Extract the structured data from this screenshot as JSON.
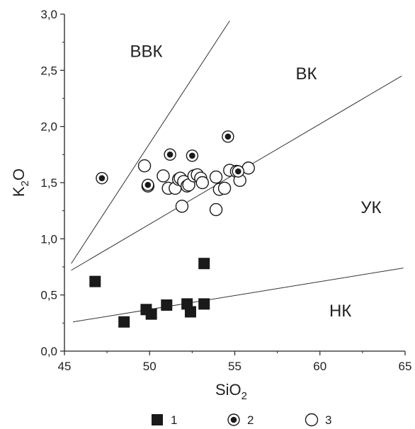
{
  "chart_data": {
    "type": "scatter",
    "title": "",
    "xlabel": {
      "main": "SiO",
      "sub": "2"
    },
    "ylabel": {
      "main": "K",
      "sub": "2",
      "tail": "O"
    },
    "xlim": [
      45,
      65
    ],
    "ylim": [
      0,
      3
    ],
    "x_ticks": [
      45,
      50,
      55,
      60,
      65
    ],
    "x_tick_labels": [
      "45",
      "50",
      "55",
      "60",
      "65"
    ],
    "y_ticks": [
      0,
      0.5,
      1.0,
      1.5,
      2.0,
      2.5,
      3.0
    ],
    "y_tick_labels": [
      "0,0",
      "0,5",
      "1,0",
      "1,5",
      "2,0",
      "2,5",
      "3,0"
    ],
    "grid": false,
    "boundary_lines": [
      {
        "from": [
          45.4,
          0.78
        ],
        "to": [
          54.7,
          2.94
        ]
      },
      {
        "from": [
          45.4,
          0.72
        ],
        "to": [
          64.8,
          2.45
        ]
      },
      {
        "from": [
          45.5,
          0.26
        ],
        "to": [
          64.9,
          0.74
        ]
      }
    ],
    "region_labels": [
      {
        "text": "ВВК",
        "at": [
          49.8,
          2.62
        ]
      },
      {
        "text": "ВК",
        "at": [
          59.2,
          2.42
        ]
      },
      {
        "text": "УК",
        "at": [
          63.0,
          1.23
        ]
      },
      {
        "text": "НК",
        "at": [
          61.2,
          0.31
        ]
      }
    ],
    "series": [
      {
        "name": "1",
        "marker": "filled-square",
        "color": "#1a1a1a",
        "points": [
          [
            46.8,
            0.62
          ],
          [
            48.5,
            0.26
          ],
          [
            49.8,
            0.37
          ],
          [
            50.1,
            0.33
          ],
          [
            51.0,
            0.41
          ],
          [
            52.2,
            0.42
          ],
          [
            52.4,
            0.35
          ],
          [
            53.2,
            0.42
          ],
          [
            53.2,
            0.78
          ]
        ]
      },
      {
        "name": "2",
        "marker": "dotted-circle",
        "color": "#1a1a1a",
        "points": [
          [
            47.2,
            1.54
          ],
          [
            49.9,
            1.48
          ],
          [
            51.2,
            1.75
          ],
          [
            52.5,
            1.74
          ],
          [
            54.6,
            1.91
          ],
          [
            55.2,
            1.6
          ]
        ]
      },
      {
        "name": "3",
        "marker": "open-circle",
        "color": "#1a1a1a",
        "points": [
          [
            49.7,
            1.65
          ],
          [
            49.9,
            1.47
          ],
          [
            50.8,
            1.56
          ],
          [
            51.1,
            1.45
          ],
          [
            51.5,
            1.45
          ],
          [
            51.7,
            1.53
          ],
          [
            51.8,
            1.54
          ],
          [
            51.9,
            1.29
          ],
          [
            52.0,
            1.51
          ],
          [
            52.2,
            1.47
          ],
          [
            52.3,
            1.48
          ],
          [
            52.6,
            1.56
          ],
          [
            52.8,
            1.57
          ],
          [
            53.0,
            1.54
          ],
          [
            53.1,
            1.5
          ],
          [
            53.9,
            1.26
          ],
          [
            53.9,
            1.55
          ],
          [
            54.1,
            1.44
          ],
          [
            54.4,
            1.45
          ],
          [
            54.7,
            1.61
          ],
          [
            55.1,
            1.6
          ],
          [
            55.3,
            1.52
          ],
          [
            55.8,
            1.63
          ]
        ]
      }
    ],
    "legend": {
      "placement": "bottom-center",
      "entries": [
        "1",
        "2",
        "3"
      ]
    }
  }
}
